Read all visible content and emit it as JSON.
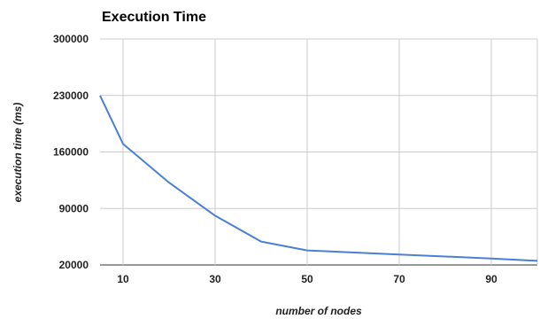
{
  "chart_data": {
    "type": "line",
    "title": "Execution Time",
    "xlabel": "number of nodes",
    "ylabel": "execution time (ms)",
    "xlim": [
      5,
      100
    ],
    "ylim": [
      20000,
      300000
    ],
    "x_ticks": [
      10,
      30,
      50,
      70,
      90
    ],
    "y_ticks": [
      20000,
      90000,
      160000,
      230000,
      300000
    ],
    "x_tick_labels": [
      "10",
      "30",
      "50",
      "70",
      "90"
    ],
    "y_tick_labels": [
      "20000",
      "90000",
      "160000",
      "230000",
      "300000"
    ],
    "grid": true,
    "legend": "none",
    "series": [
      {
        "color": "#4a7fd4",
        "x": [
          5,
          10,
          20,
          30,
          40,
          50,
          70,
          90,
          100
        ],
        "y": [
          230000,
          170000,
          122000,
          81000,
          49000,
          38000,
          33000,
          28000,
          25000
        ]
      }
    ]
  }
}
